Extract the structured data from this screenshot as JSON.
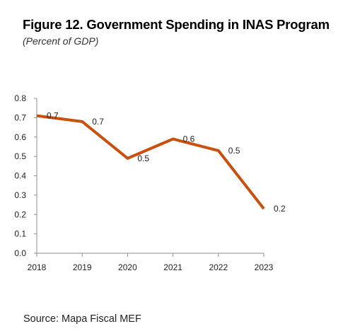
{
  "header": {
    "title": "Figure 12. Government Spending in INAS Program",
    "subtitle": "(Percent of GDP)"
  },
  "footer": {
    "source": "Source:  Mapa Fiscal MEF"
  },
  "chart_data": {
    "type": "line",
    "title": "Figure 12. Government Spending in INAS Program",
    "subtitle": "(Percent of GDP)",
    "xlabel": "",
    "ylabel": "",
    "categories": [
      "2018",
      "2019",
      "2020",
      "2021",
      "2022",
      "2023"
    ],
    "series": [
      {
        "values": [
          0.71,
          0.68,
          0.49,
          0.59,
          0.53,
          0.23
        ],
        "data_labels": [
          "0.7",
          "0.7",
          "0.5",
          "0.6",
          "0.5",
          "0.2"
        ],
        "color": "#C9500F"
      }
    ],
    "ylim": [
      0,
      0.8
    ],
    "yticks": [
      "0.0",
      "0.1",
      "0.2",
      "0.3",
      "0.4",
      "0.5",
      "0.6",
      "0.7",
      "0.8"
    ],
    "grid": false,
    "legend": "none"
  }
}
